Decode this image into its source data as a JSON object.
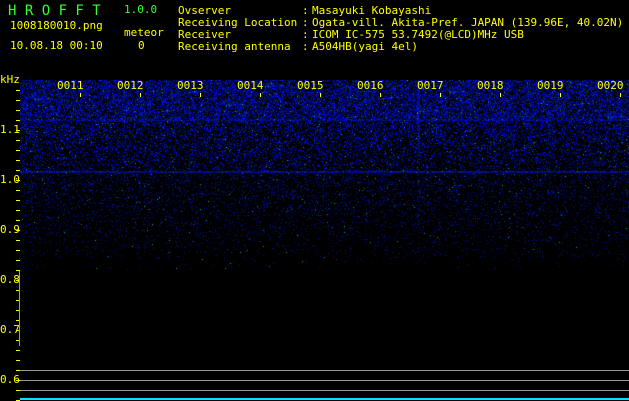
{
  "app": {
    "name": "H R O F F T",
    "version": "1.0.0"
  },
  "file": {
    "name": "1008180010.png",
    "datetime": "10.08.18 00:10"
  },
  "meteor": {
    "label": "meteor",
    "count": "0"
  },
  "info": [
    {
      "label": "Ovserver",
      "value": "Masayuki Kobayashi"
    },
    {
      "label": "Receiving Location",
      "value": "Ogata-vill. Akita-Pref. JAPAN (139.96E, 40.02N)"
    },
    {
      "label": "Receiver",
      "value": "ICOM IC-575 53.7492(@LCD)MHz USB"
    },
    {
      "label": "Receiving antenna",
      "value": "A504HB(yagi 4el)"
    }
  ],
  "spectrogram": {
    "y_unit": "kHz",
    "y_ticks": [
      "1.1",
      "1.0",
      "0.9",
      "0.8",
      "0.7",
      "0.6"
    ],
    "x_ticks": [
      "0011",
      "0012",
      "0013",
      "0014",
      "0015",
      "0016",
      "0017",
      "0018",
      "0019",
      "0020"
    ],
    "colors": {
      "text": "#ffff00",
      "title": "#33ff33",
      "signal": "#2020ff",
      "baseline": "#00e5ff"
    }
  }
}
